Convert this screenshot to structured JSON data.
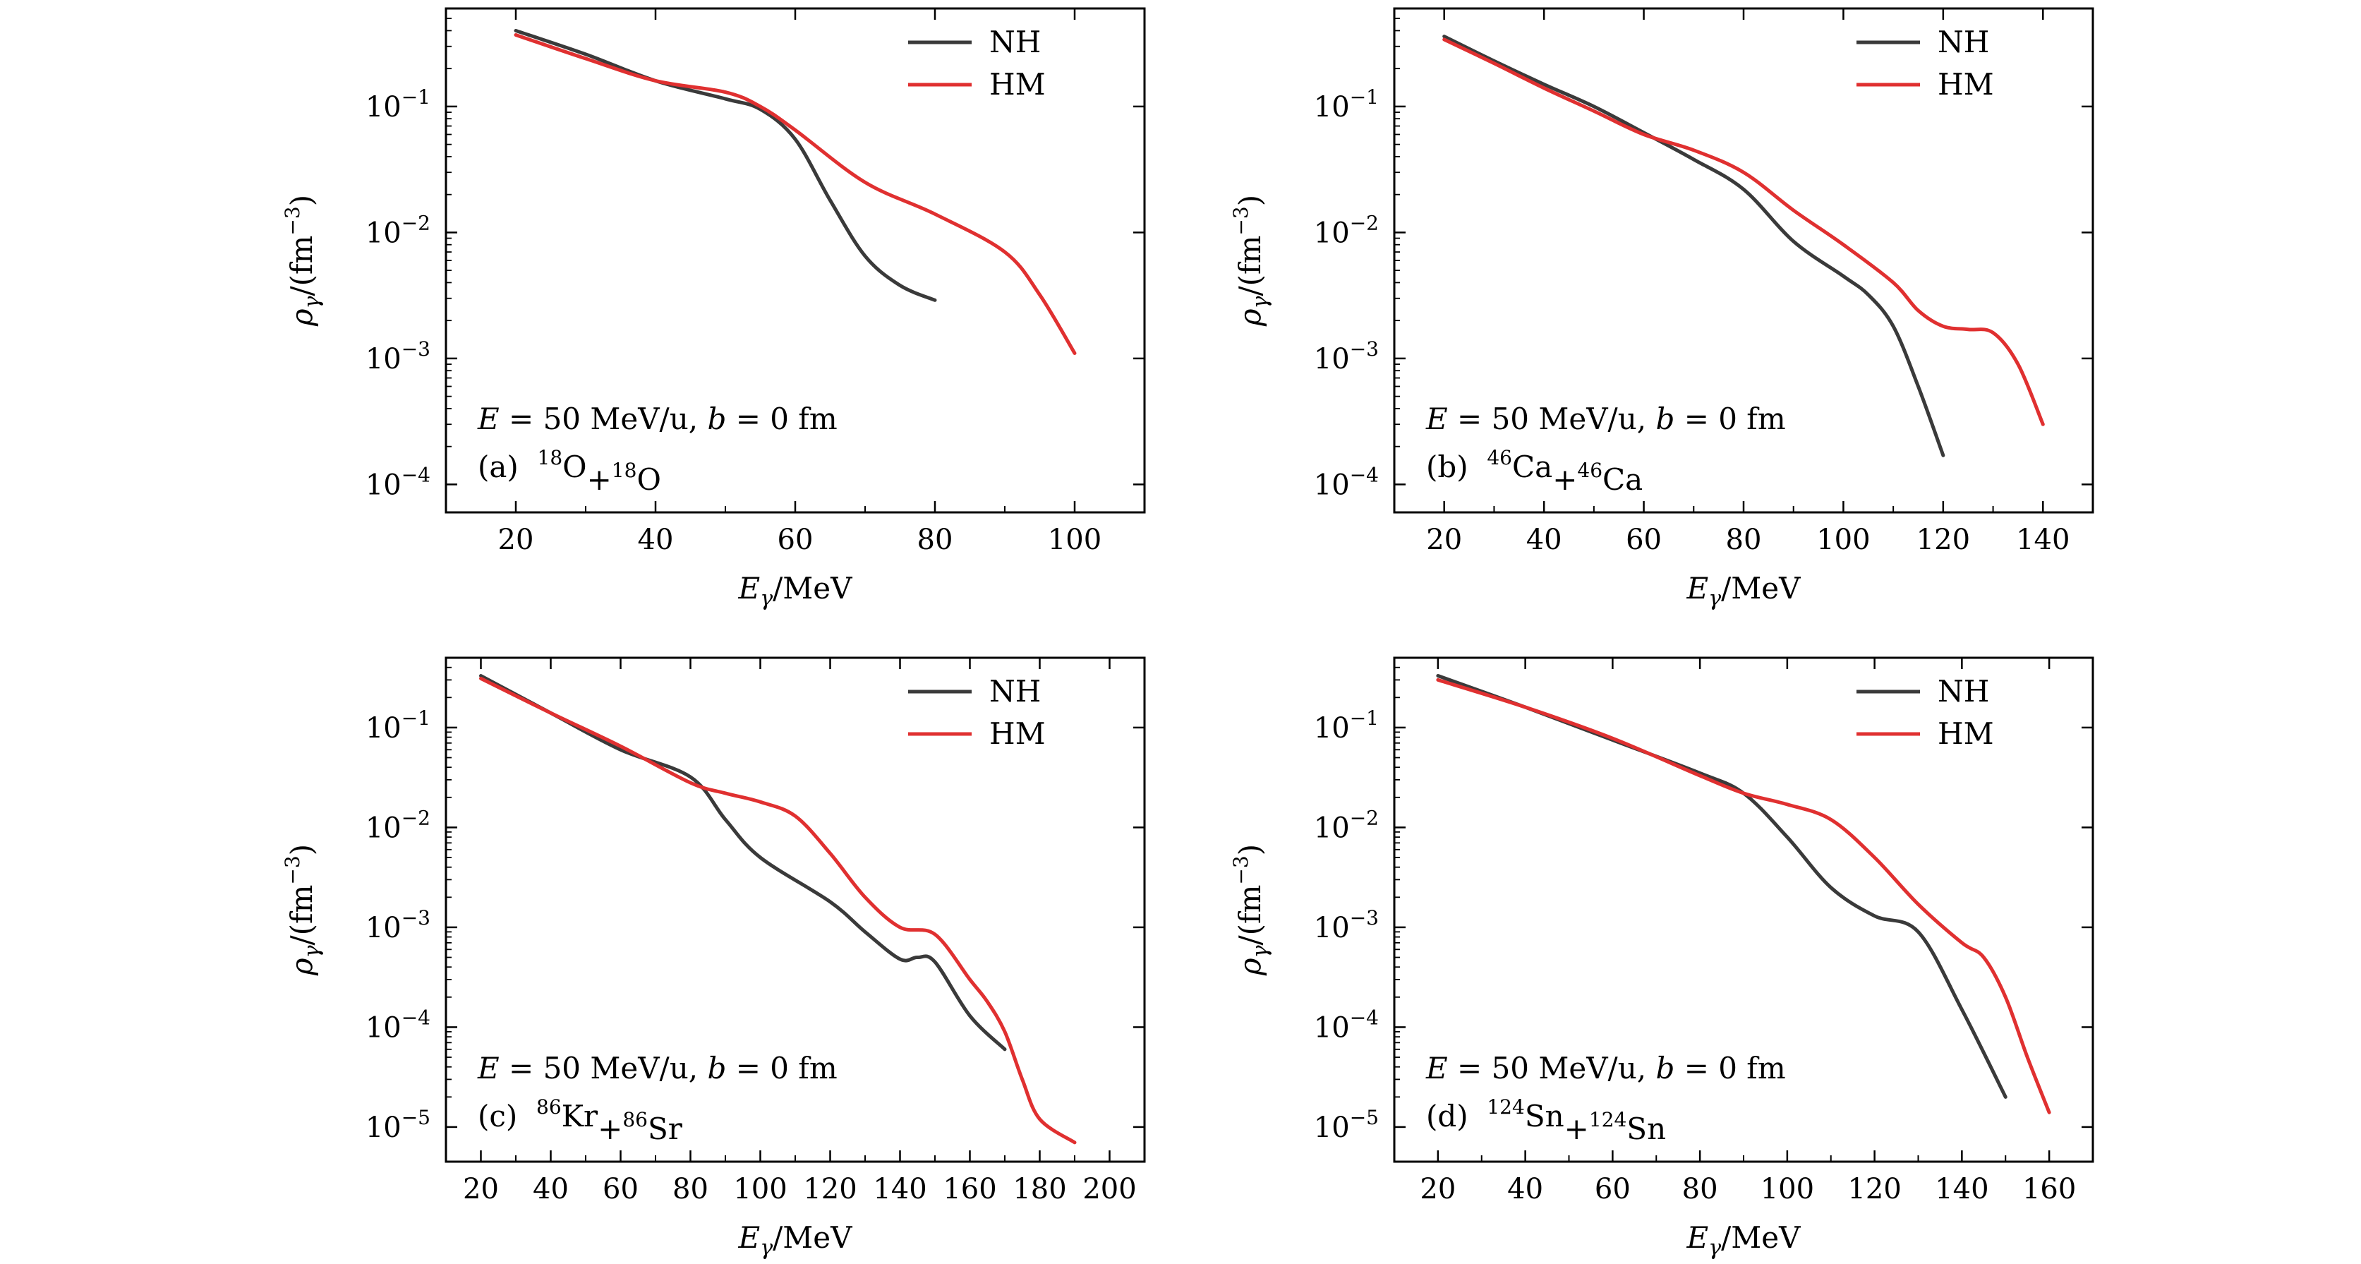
{
  "legend": {
    "nh": "NH",
    "hm": "HM"
  },
  "colors": {
    "nh": "#3a3a3a",
    "hm": "#e03030"
  },
  "chart_data": [
    {
      "type": "line",
      "panel": "(a)",
      "reaction": "18O+18O",
      "condition": "E = 50 MeV/u, b = 0 fm",
      "xlabel": "Eγ/MeV",
      "ylabel": "ργ/(fm−3)",
      "yscale": "log",
      "xlim": [
        10,
        110
      ],
      "ylim": [
        6e-05,
        0.6
      ],
      "xticks": [
        20,
        40,
        60,
        80,
        100
      ],
      "yticks_exp": [
        -1,
        -2,
        -3,
        -4
      ],
      "grid": false,
      "legend_position": "top-right",
      "series": [
        {
          "name": "NH",
          "x": [
            20,
            30,
            40,
            50,
            55,
            60,
            65,
            70,
            75,
            80
          ],
          "y": [
            0.4,
            0.26,
            0.16,
            0.115,
            0.095,
            0.055,
            0.018,
            0.0065,
            0.0038,
            0.0029
          ]
        },
        {
          "name": "HM",
          "x": [
            20,
            30,
            40,
            50,
            55,
            60,
            70,
            80,
            90,
            95,
            100
          ],
          "y": [
            0.37,
            0.24,
            0.16,
            0.13,
            0.1,
            0.065,
            0.025,
            0.014,
            0.007,
            0.0032,
            0.0011
          ]
        }
      ]
    },
    {
      "type": "line",
      "panel": "(b)",
      "reaction": "46Ca+46Ca",
      "condition": "E = 50 MeV/u, b = 0 fm",
      "xlabel": "Eγ/MeV",
      "ylabel": "ργ/(fm−3)",
      "yscale": "log",
      "xlim": [
        10,
        150
      ],
      "ylim": [
        6e-05,
        0.6
      ],
      "xticks": [
        20,
        40,
        60,
        80,
        100,
        120,
        140
      ],
      "yticks_exp": [
        -1,
        -2,
        -3,
        -4
      ],
      "grid": false,
      "legend_position": "top-right",
      "series": [
        {
          "name": "NH",
          "x": [
            20,
            30,
            40,
            50,
            60,
            70,
            80,
            90,
            100,
            105,
            110,
            115,
            120
          ],
          "y": [
            0.36,
            0.23,
            0.15,
            0.1,
            0.062,
            0.038,
            0.022,
            0.0085,
            0.0045,
            0.0032,
            0.0018,
            0.0006,
            0.00017
          ]
        },
        {
          "name": "HM",
          "x": [
            20,
            30,
            40,
            50,
            60,
            70,
            80,
            90,
            100,
            110,
            115,
            120,
            125,
            130,
            135,
            140
          ],
          "y": [
            0.34,
            0.22,
            0.14,
            0.092,
            0.06,
            0.045,
            0.03,
            0.015,
            0.008,
            0.004,
            0.0024,
            0.0018,
            0.0017,
            0.0016,
            0.0009,
            0.0003
          ]
        }
      ]
    },
    {
      "type": "line",
      "panel": "(c)",
      "reaction": "86Kr+86Sr",
      "condition": "E = 50 MeV/u, b = 0 fm",
      "xlabel": "Eγ/MeV",
      "ylabel": "ργ/(fm−3)",
      "yscale": "log",
      "xlim": [
        10,
        210
      ],
      "ylim": [
        4.5e-06,
        0.5
      ],
      "xticks": [
        20,
        40,
        60,
        80,
        100,
        120,
        140,
        160,
        180,
        200
      ],
      "yticks_exp": [
        -1,
        -2,
        -3,
        -4,
        -5
      ],
      "grid": false,
      "legend_position": "top-right",
      "series": [
        {
          "name": "NH",
          "x": [
            20,
            40,
            60,
            80,
            90,
            100,
            120,
            130,
            140,
            145,
            150,
            160,
            170
          ],
          "y": [
            0.33,
            0.14,
            0.06,
            0.032,
            0.012,
            0.005,
            0.0018,
            0.0009,
            0.00048,
            0.0005,
            0.00045,
            0.00013,
            6e-05
          ]
        },
        {
          "name": "HM",
          "x": [
            20,
            40,
            60,
            80,
            90,
            100,
            110,
            120,
            130,
            140,
            150,
            160,
            165,
            170,
            175,
            180,
            190
          ],
          "y": [
            0.31,
            0.14,
            0.065,
            0.028,
            0.022,
            0.018,
            0.013,
            0.0055,
            0.002,
            0.001,
            0.00085,
            0.0003,
            0.00018,
            9e-05,
            3e-05,
            1.2e-05,
            7e-06
          ]
        }
      ]
    },
    {
      "type": "line",
      "panel": "(d)",
      "reaction": "124Sn+124Sn",
      "condition": "E = 50 MeV/u, b = 0 fm",
      "xlabel": "Eγ/MeV",
      "ylabel": "ργ/(fm−3)",
      "yscale": "log",
      "xlim": [
        10,
        170
      ],
      "ylim": [
        4.5e-06,
        0.5
      ],
      "xticks": [
        20,
        40,
        60,
        80,
        100,
        120,
        140,
        160
      ],
      "yticks_exp": [
        -1,
        -2,
        -3,
        -4,
        -5
      ],
      "grid": false,
      "legend_position": "top-right",
      "series": [
        {
          "name": "NH",
          "x": [
            20,
            40,
            60,
            80,
            90,
            100,
            110,
            120,
            130,
            140,
            150
          ],
          "y": [
            0.33,
            0.16,
            0.075,
            0.035,
            0.022,
            0.008,
            0.0025,
            0.0013,
            0.0009,
            0.00015,
            2e-05
          ]
        },
        {
          "name": "HM",
          "x": [
            20,
            40,
            60,
            80,
            90,
            100,
            110,
            120,
            130,
            140,
            145,
            150,
            155,
            160
          ],
          "y": [
            0.3,
            0.16,
            0.078,
            0.033,
            0.022,
            0.017,
            0.012,
            0.005,
            0.0017,
            0.0007,
            0.0005,
            0.0002,
            5e-05,
            1.4e-05
          ]
        }
      ]
    }
  ]
}
